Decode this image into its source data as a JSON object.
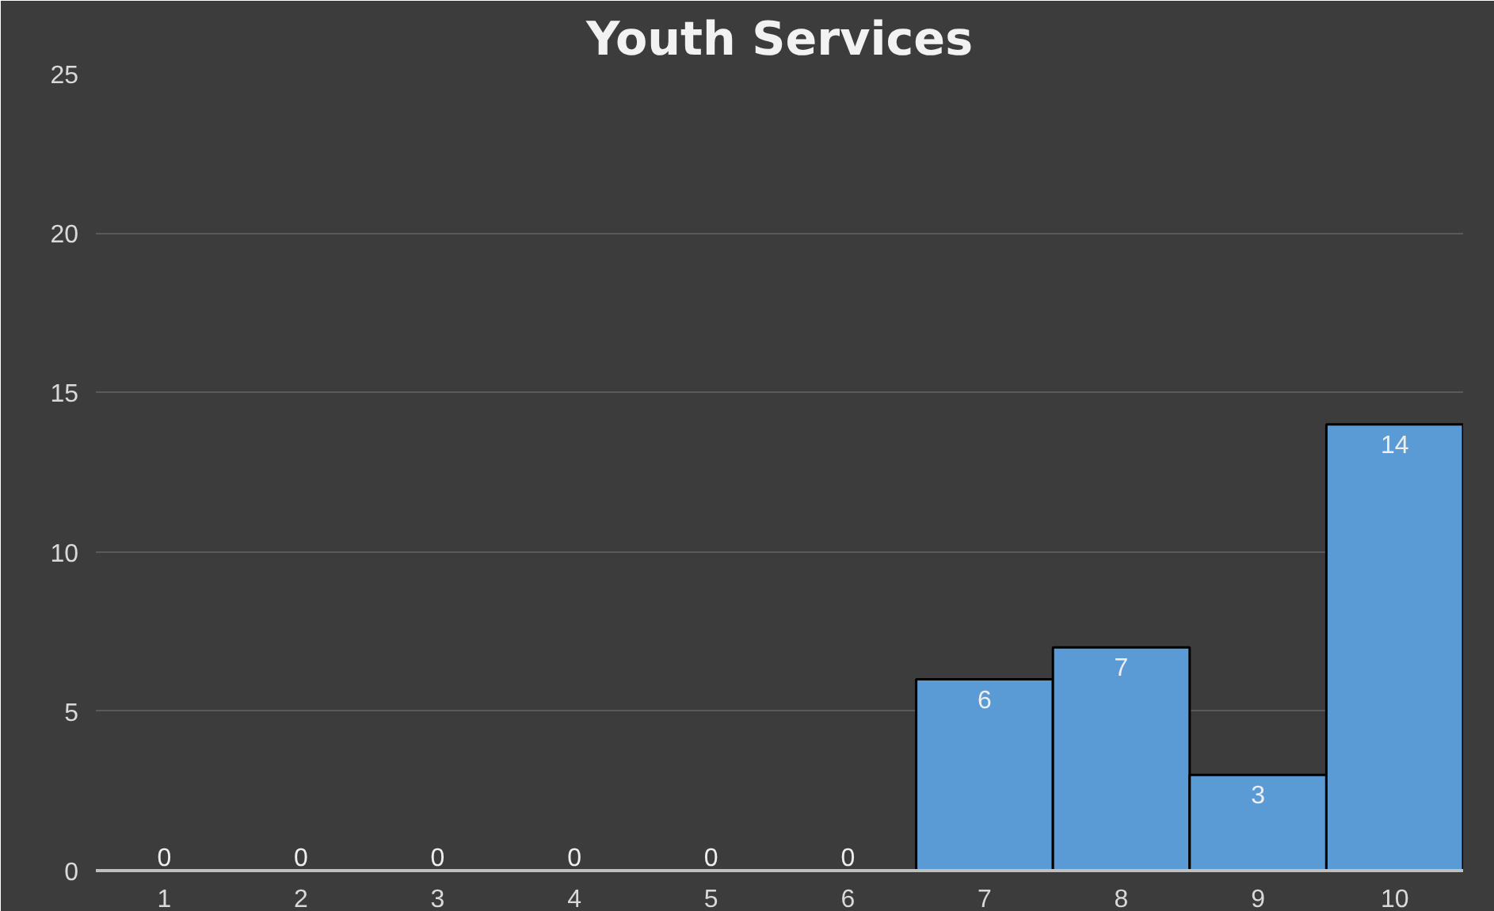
{
  "chart_data": {
    "type": "bar",
    "title": "Youth Services",
    "categories": [
      "1",
      "2",
      "3",
      "4",
      "5",
      "6",
      "7",
      "8",
      "9",
      "10"
    ],
    "values": [
      0,
      0,
      0,
      0,
      0,
      0,
      6,
      7,
      3,
      14
    ],
    "color": "#5b9bd5",
    "ylim": [
      0,
      25
    ],
    "yticks": [
      0,
      5,
      10,
      15,
      20,
      25
    ],
    "grid": "y",
    "data_labels": true
  }
}
